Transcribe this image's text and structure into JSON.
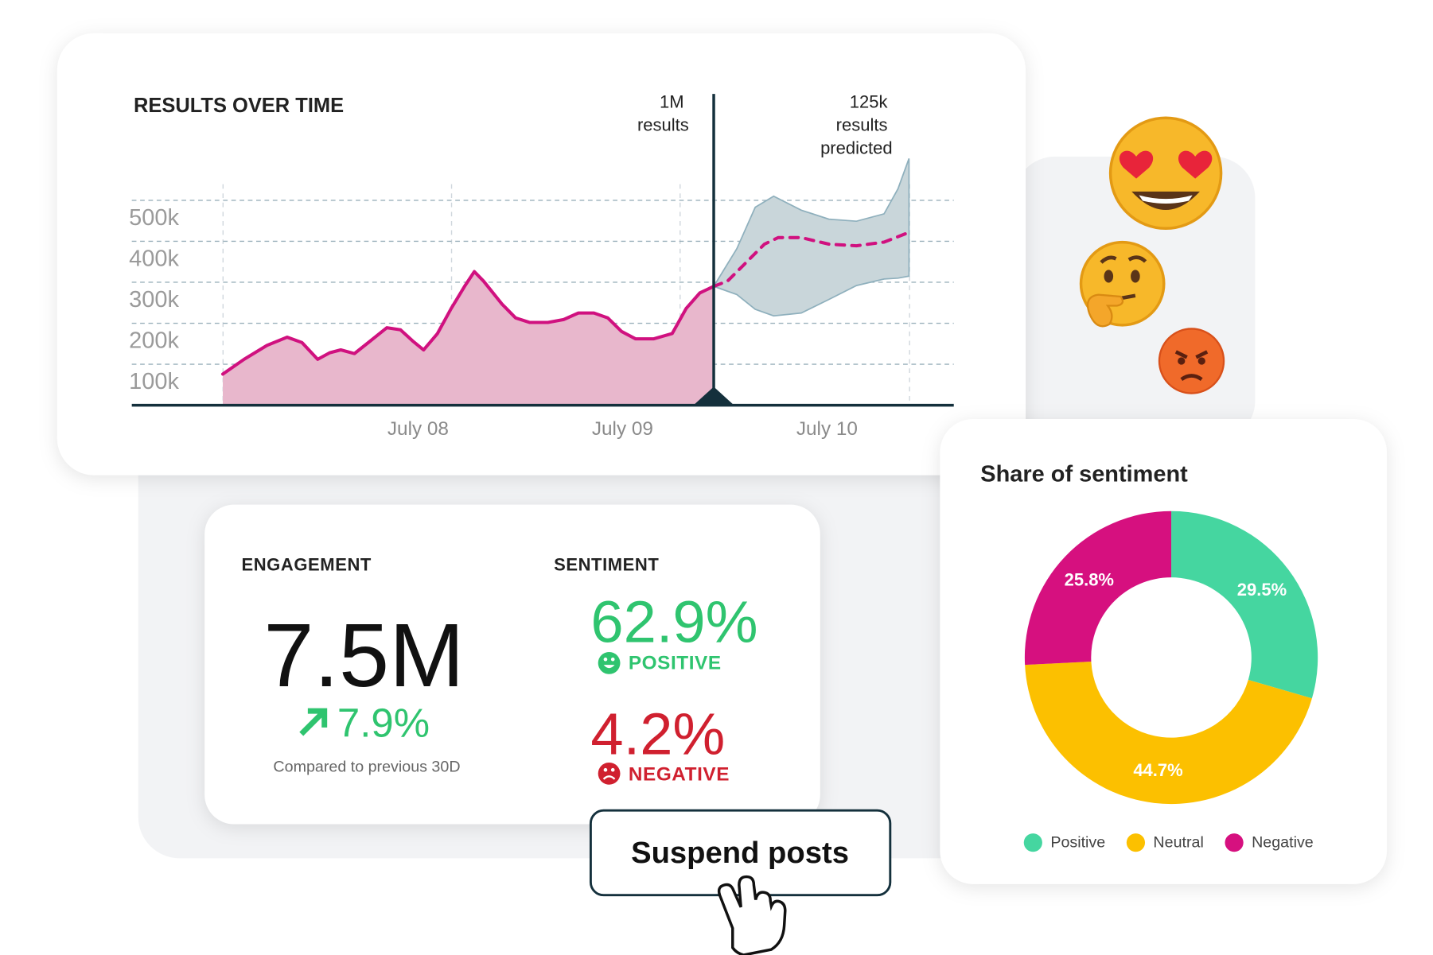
{
  "chart_data": [
    {
      "type": "line",
      "title": "RESULTS OVER TIME",
      "annotations": [
        "1M results",
        "125k results predicted"
      ],
      "xlim": [
        6.6,
        10.62
      ],
      "xticks": [
        {
          "value": 8,
          "label": "July 08"
        },
        {
          "value": 9,
          "label": "July 09"
        },
        {
          "value": 10,
          "label": "July 10"
        }
      ],
      "ylim": [
        0,
        600000
      ],
      "yticks": [
        {
          "value": 100000,
          "label": "100k"
        },
        {
          "value": 200000,
          "label": "200k"
        },
        {
          "value": 300000,
          "label": "300k"
        },
        {
          "value": 400000,
          "label": "400k"
        },
        {
          "value": 500000,
          "label": "500k"
        }
      ],
      "grid": true,
      "series": [
        {
          "color": "#d0117f",
          "fill": "#e8b7cc",
          "dashed": false,
          "x": [
            7.045,
            7.149,
            7.261,
            7.36,
            7.432,
            7.509,
            7.568,
            7.622,
            7.689,
            7.757,
            7.847,
            7.914,
            7.973,
            8.027,
            8.095,
            8.162,
            8.23,
            8.275,
            8.32,
            8.41,
            8.477,
            8.545,
            8.635,
            8.712,
            8.784,
            8.86,
            8.928,
            8.995,
            9.063,
            9.153,
            9.243,
            9.311,
            9.378,
            9.446
          ],
          "values": [
            76000,
            112000,
            146000,
            166000,
            153000,
            112000,
            128000,
            135000,
            126000,
            153000,
            189000,
            184000,
            157000,
            135000,
            175000,
            236000,
            292000,
            326000,
            303000,
            247000,
            213000,
            202000,
            202000,
            209000,
            225000,
            225000,
            213000,
            180000,
            162000,
            162000,
            175000,
            236000,
            274000,
            290000
          ]
        },
        {
          "color": "#d0117f",
          "dashed": true,
          "x": [
            9.446,
            9.514,
            9.604,
            9.694,
            9.761,
            9.874,
            10.009,
            10.144,
            10.279,
            10.392
          ],
          "values": [
            290000,
            303000,
            348000,
            393000,
            409000,
            409000,
            393000,
            389000,
            398000,
            420000
          ]
        }
      ],
      "band": {
        "color": "#c9d6da",
        "stroke": "#8fb0bd",
        "x": [
          9.446,
          9.559,
          9.649,
          9.739,
          9.874,
          10.009,
          10.144,
          10.279,
          10.347,
          10.401
        ],
        "upper": [
          290000,
          382000,
          483000,
          510000,
          476000,
          454000,
          449000,
          467000,
          528000,
          602000
        ],
        "lower": [
          290000,
          270000,
          234000,
          218000,
          225000,
          258000,
          292000,
          308000,
          310000,
          315000
        ]
      }
    },
    {
      "type": "pie",
      "title": "Share of sentiment",
      "categories": [
        "Positive",
        "Neutral",
        "Negative"
      ],
      "values": [
        29.5,
        44.7,
        25.8
      ],
      "value_labels": [
        "29.5%",
        "44.7%",
        "25.8%"
      ],
      "colors": [
        "#45d6a0",
        "#fcc000",
        "#d6107f"
      ],
      "legend": "bottom"
    }
  ],
  "engagement": {
    "label": "ENGAGEMENT",
    "value": "7.5M",
    "change": "7.9%",
    "note": "Compared to previous 30D"
  },
  "sentiment": {
    "label": "SENTIMENT",
    "positive": {
      "value": "62.9%",
      "label": "POSITIVE"
    },
    "negative": {
      "value": "4.2%",
      "label": "NEGATIVE"
    }
  },
  "button": "Suspend posts"
}
